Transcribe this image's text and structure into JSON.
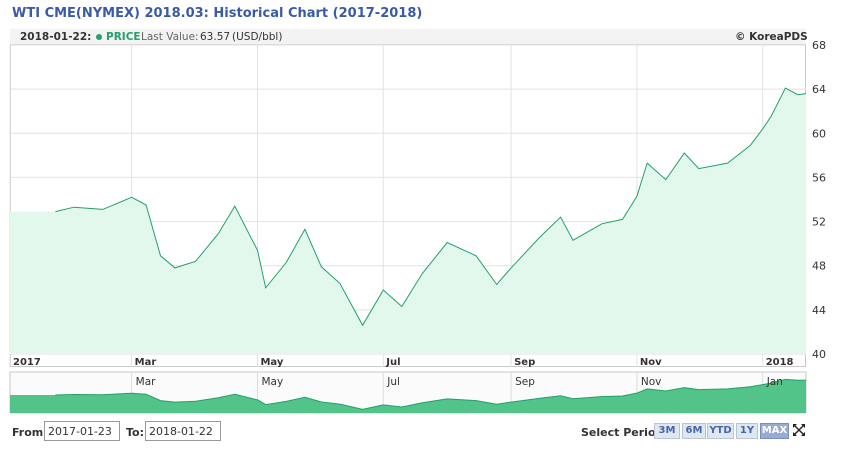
{
  "page": {
    "title": "WTI CME(NYMEX) 2018.03: Historical Chart (2017-2018)"
  },
  "header": {
    "date": "2018-01-22:",
    "series_name": "PRICE",
    "last_value_label": "Last Value:",
    "last_value": "63.57",
    "unit": "(USD/bbl)",
    "copyright": "© KoreaPDS"
  },
  "controls": {
    "from_label": "From:",
    "from_value": "2017-01-23",
    "to_label": "To:",
    "to_value": "2018-01-22",
    "select_period_label": "Select Period:",
    "periods": [
      "3M",
      "6M",
      "YTD",
      "1Y",
      "MAX"
    ],
    "active_period": "MAX",
    "expand_icon": "expand-arrows-icon"
  },
  "colors": {
    "line": "#23a06b",
    "fill": "#e3f8ec",
    "navigator_fill": "#52c48a",
    "title": "#3a5aa8"
  },
  "chart_data": {
    "type": "area",
    "title": "WTI CME(NYMEX) 2018.03: Historical Chart (2017-2018)",
    "ylim": [
      40,
      68
    ],
    "y_ticks": [
      "40",
      "44",
      "48",
      "52",
      "56",
      "60",
      "64",
      "68"
    ],
    "x_ticks": [
      "2017",
      "Mar",
      "May",
      "Jul",
      "Sep",
      "Nov",
      "2018"
    ],
    "navigator_ticks": [
      "Mar",
      "May",
      "Jul",
      "Sep",
      "Nov",
      "Jan"
    ],
    "grid": true,
    "series": [
      {
        "name": "PRICE",
        "x": [
          "2017-01-23",
          "2017-02-01",
          "2017-02-15",
          "2017-03-01",
          "2017-03-08",
          "2017-03-15",
          "2017-03-22",
          "2017-04-01",
          "2017-04-12",
          "2017-04-20",
          "2017-05-01",
          "2017-05-05",
          "2017-05-15",
          "2017-05-24",
          "2017-06-01",
          "2017-06-10",
          "2017-06-21",
          "2017-07-01",
          "2017-07-10",
          "2017-07-20",
          "2017-08-01",
          "2017-08-15",
          "2017-08-25",
          "2017-09-01",
          "2017-09-15",
          "2017-09-25",
          "2017-10-01",
          "2017-10-15",
          "2017-10-25",
          "2017-11-01",
          "2017-11-06",
          "2017-11-15",
          "2017-11-24",
          "2017-12-01",
          "2017-12-15",
          "2017-12-26",
          "2018-01-01",
          "2018-01-05",
          "2018-01-12",
          "2018-01-18",
          "2018-01-22"
        ],
        "values": [
          52.9,
          53.3,
          53.1,
          54.2,
          53.5,
          48.9,
          47.8,
          48.4,
          50.9,
          53.4,
          49.4,
          46.0,
          48.3,
          51.3,
          47.9,
          46.4,
          42.6,
          45.8,
          44.3,
          47.3,
          50.1,
          48.9,
          46.3,
          47.8,
          50.6,
          52.4,
          50.3,
          51.8,
          52.2,
          54.3,
          57.3,
          55.8,
          58.2,
          56.8,
          57.3,
          58.9,
          60.4,
          61.5,
          64.1,
          63.5,
          63.6
        ]
      }
    ]
  }
}
